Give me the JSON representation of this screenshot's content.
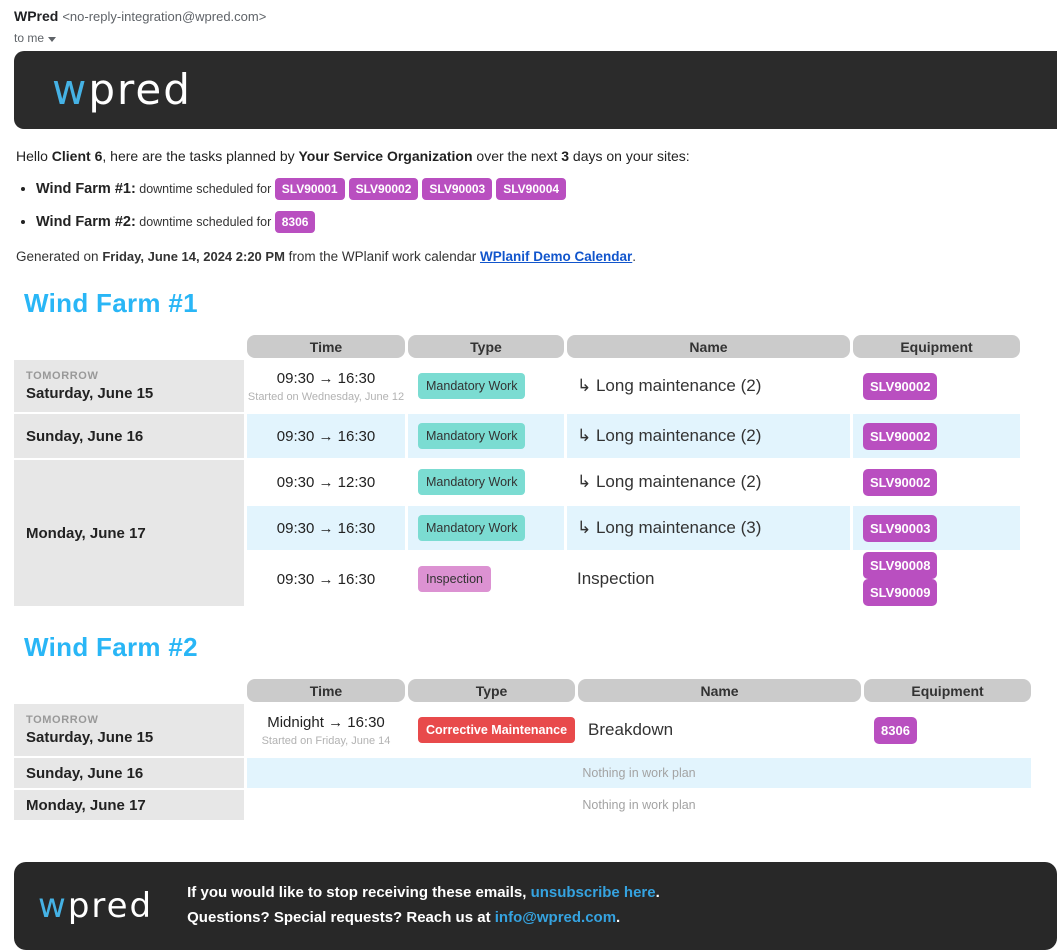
{
  "email_header": {
    "sender_name": "WPred",
    "sender_email": "<no-reply-integration@wpred.com>",
    "to_label": "to me"
  },
  "brand": {
    "logo_w": "w",
    "logo_rest": "pred"
  },
  "colors": {
    "accent_cyan": "#29b6f6",
    "logo_blue": "#45b2e5",
    "equipment_magenta": "#b94fc0",
    "type_teal": "#7bdcd2",
    "type_pink": "#dc92d2",
    "type_red": "#e84a4b",
    "row_blue": "#e2f4fd",
    "header_gray": "#cbcbcb",
    "date_cell_gray": "#e7e7e7",
    "dark_bar": "#2b2b2b"
  },
  "intro": {
    "prefix": "Hello ",
    "client": "Client 6",
    "mid1": ", here are the tasks planned by ",
    "org": "Your Service Organization",
    "mid2": " over the next ",
    "days": "3",
    "suffix": " days on your sites:"
  },
  "summary": [
    {
      "site": "Wind Farm #1:",
      "label": "downtime scheduled for",
      "badges": [
        "SLV90001",
        "SLV90002",
        "SLV90003",
        "SLV90004"
      ]
    },
    {
      "site": "Wind Farm #2:",
      "label": "downtime scheduled for",
      "badges": [
        "8306"
      ]
    }
  ],
  "generated": {
    "prefix": "Generated on ",
    "datetime": "Friday, June 14, 2024 2:20 PM",
    "mid": " from the WPlanif work calendar ",
    "link": "WPlanif Demo Calendar",
    "suffix": "."
  },
  "table_headers": [
    "Time",
    "Type",
    "Name",
    "Equipment"
  ],
  "farms": [
    {
      "title": "Wind Farm #1",
      "groups": [
        {
          "tag": "TOMORROW",
          "date": "Saturday, June 15",
          "rows": [
            {
              "time": "09:30 → 16:30",
              "time_note": "Started on Wednesday, June 12",
              "type": "Mandatory Work",
              "type_color": "teal",
              "name": "↳ Long maintenance (2)",
              "equipment": [
                "SLV90002"
              ]
            }
          ]
        },
        {
          "tag": "",
          "date": "Sunday, June 16",
          "rows": [
            {
              "time": "09:30 → 16:30",
              "type": "Mandatory Work",
              "type_color": "teal",
              "name": "↳ Long maintenance (2)",
              "equipment": [
                "SLV90002"
              ]
            }
          ]
        },
        {
          "tag": "",
          "date": "Monday, June 17",
          "rows": [
            {
              "time": "09:30 → 12:30",
              "type": "Mandatory Work",
              "type_color": "teal",
              "name": "↳ Long maintenance (2)",
              "equipment": [
                "SLV90002"
              ]
            },
            {
              "time": "09:30 → 16:30",
              "type": "Mandatory Work",
              "type_color": "teal",
              "name": "↳ Long maintenance (3)",
              "equipment": [
                "SLV90003"
              ]
            },
            {
              "time": "09:30 → 16:30",
              "type": "Inspection",
              "type_color": "pink",
              "name": "Inspection",
              "equipment": [
                "SLV90008",
                "SLV90009"
              ]
            }
          ]
        }
      ]
    },
    {
      "title": "Wind Farm #2",
      "groups": [
        {
          "tag": "TOMORROW",
          "date": "Saturday, June 15",
          "rows": [
            {
              "time": "Midnight → 16:30",
              "time_note": "Started on Friday, June 14",
              "type": "Corrective Maintenance",
              "type_color": "red",
              "name": "Breakdown",
              "equipment": [
                "8306"
              ]
            }
          ]
        },
        {
          "tag": "",
          "date": "Sunday, June 16",
          "rows": [
            {
              "empty": "Nothing in work plan"
            }
          ]
        },
        {
          "tag": "",
          "date": "Monday, June 17",
          "rows": [
            {
              "empty": "Nothing in work plan"
            }
          ]
        }
      ]
    }
  ],
  "footer": {
    "line1_prefix": "If you would like to stop receiving these emails, ",
    "line1_link": "unsubscribe here",
    "line1_suffix": ".",
    "line2_prefix": "Questions? Special requests? Reach us at ",
    "line2_link": "info@wpred.com",
    "line2_suffix": "."
  }
}
